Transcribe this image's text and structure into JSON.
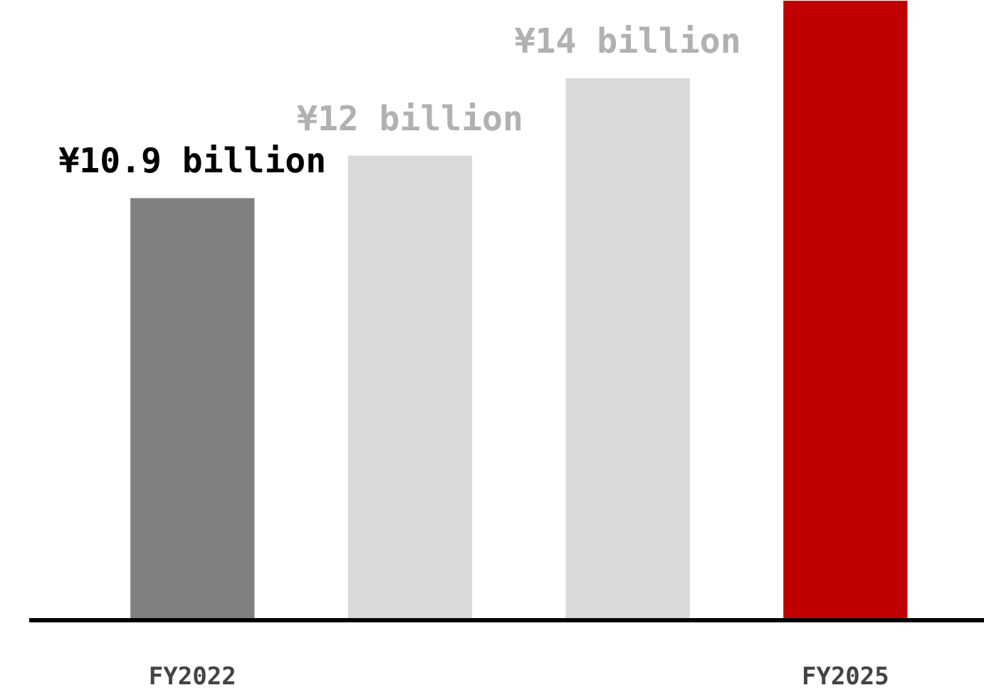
{
  "chart_data": {
    "type": "bar",
    "ylim": [
      0,
      16
    ],
    "categories": [
      "FY2022",
      null,
      null,
      "FY2025"
    ],
    "values": [
      10.9,
      12,
      14,
      16
    ],
    "colors": [
      "#808080",
      "#d9d9d9",
      "#d9d9d9",
      "#c00000"
    ],
    "value_labels": [
      "¥10.9 billion",
      "¥12 billion",
      "¥14 billion",
      null
    ],
    "grid": false,
    "tick_labels": "x"
  }
}
